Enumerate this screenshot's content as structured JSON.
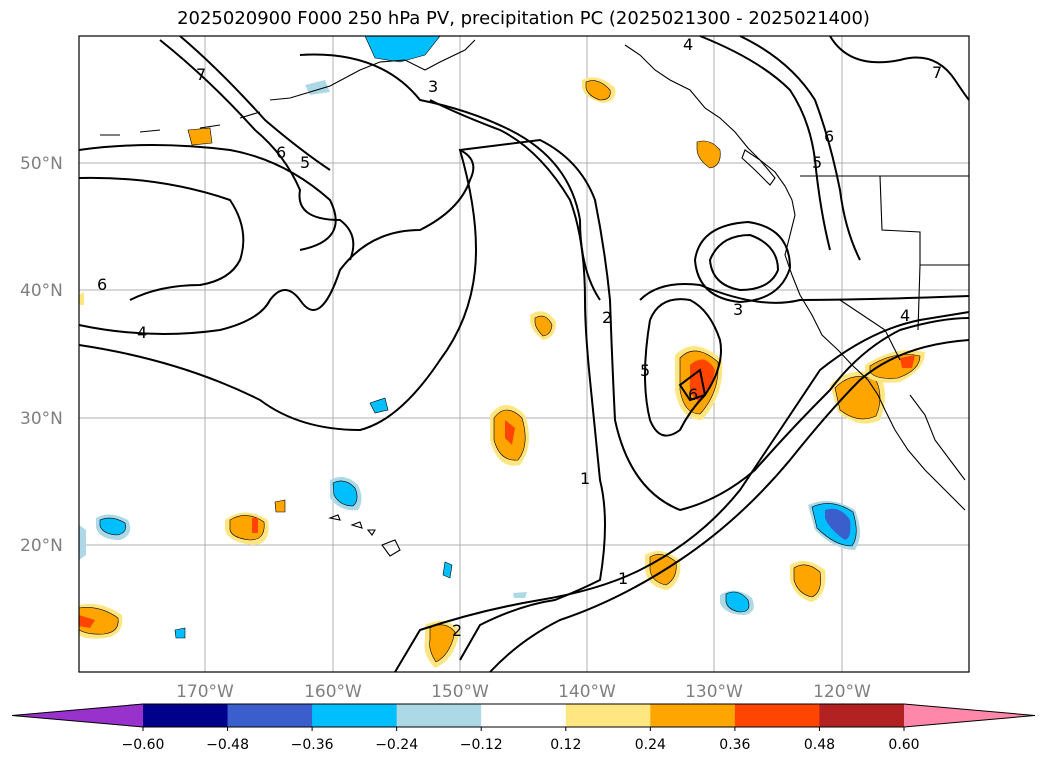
{
  "title": "2025020900 F000 250 hPa PV, precipitation PC (2025021300 - 2025021400)",
  "map": {
    "lat_labels": [
      "50°N",
      "40°N",
      "30°N",
      "20°N"
    ],
    "lon_labels": [
      "170°W",
      "160°W",
      "150°W",
      "140°W",
      "130°W",
      "120°W"
    ],
    "contour_labels": [
      "7",
      "3",
      "4",
      "7",
      "6",
      "5",
      "6",
      "5",
      "6",
      "4",
      "2",
      "5",
      "3",
      "4",
      "6",
      "1",
      "1",
      "2"
    ]
  },
  "colorbar": {
    "ticks": [
      "−0.60",
      "−0.48",
      "−0.36",
      "−0.24",
      "−0.12",
      "0.12",
      "0.24",
      "0.36",
      "0.48",
      "0.60"
    ],
    "colors": [
      "#9932cc",
      "#00008b",
      "#3a5fcd",
      "#00bfff",
      "#add8e6",
      "#ffffff",
      "#ffe680",
      "#ffa500",
      "#ff4500",
      "#b22222",
      "#ff88aa"
    ]
  }
}
